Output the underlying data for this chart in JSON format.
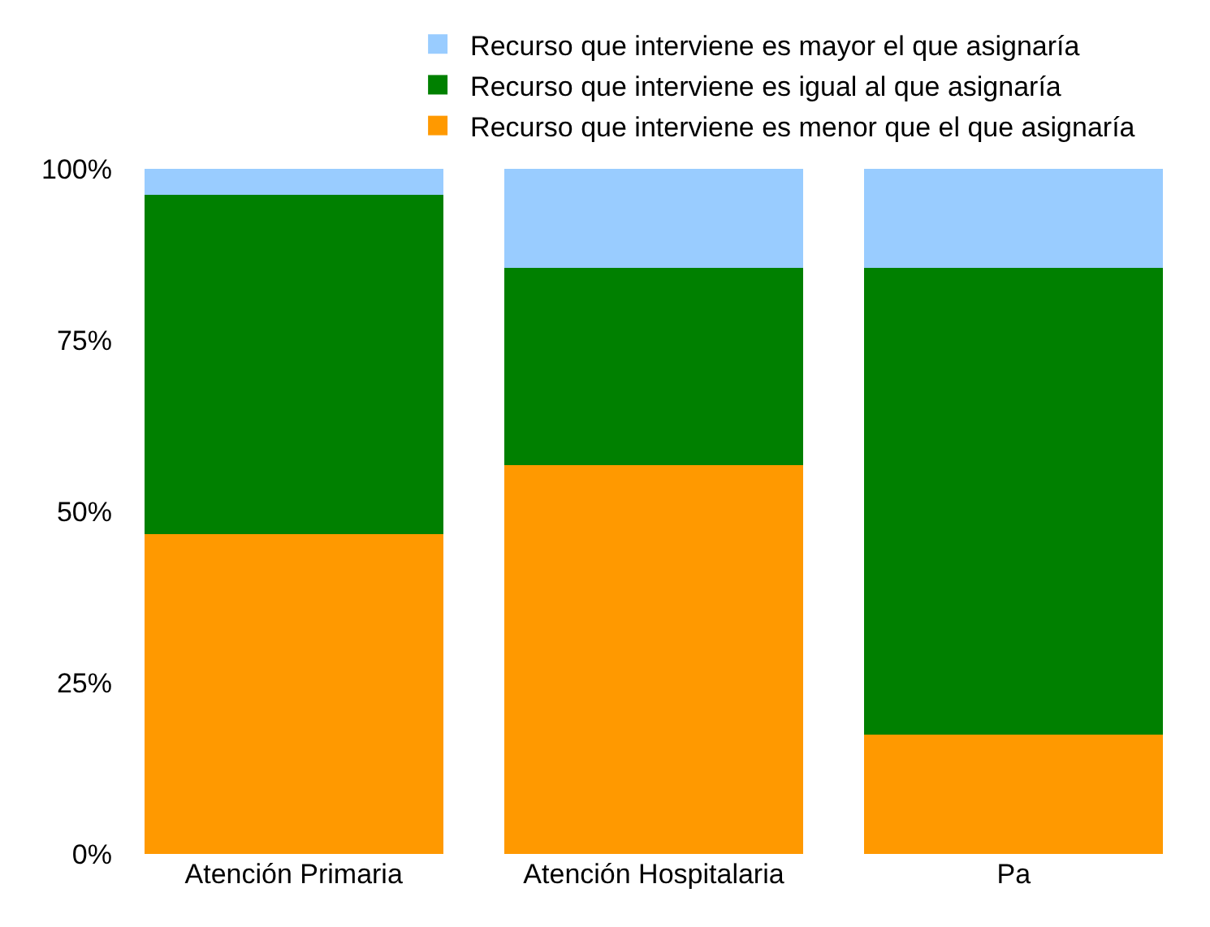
{
  "chart_data": {
    "type": "bar",
    "stacked": true,
    "categories": [
      "Atención Primaria",
      "Atención Hospitalaria",
      "Pa"
    ],
    "series": [
      {
        "name": "Recurso que interviene es menor que el que asignaría",
        "color": "#ff9900",
        "values": [
          46.7,
          56.8,
          17.4
        ]
      },
      {
        "name": "Recurso que interviene es igual al que asignaría",
        "color": "#008000",
        "values": [
          49.5,
          28.8,
          68.2
        ]
      },
      {
        "name": "Recurso que interviene es mayor el que asignaría",
        "color": "#99ccff",
        "values": [
          3.8,
          14.4,
          14.4
        ]
      }
    ],
    "ylim": [
      0,
      100
    ],
    "yticks": [
      {
        "value": 0,
        "label": "0%"
      },
      {
        "value": 25,
        "label": "25%"
      },
      {
        "value": 50,
        "label": "50%"
      },
      {
        "value": 75,
        "label": "75%"
      },
      {
        "value": 100,
        "label": "100%"
      }
    ],
    "grid": false,
    "legend": "top"
  }
}
